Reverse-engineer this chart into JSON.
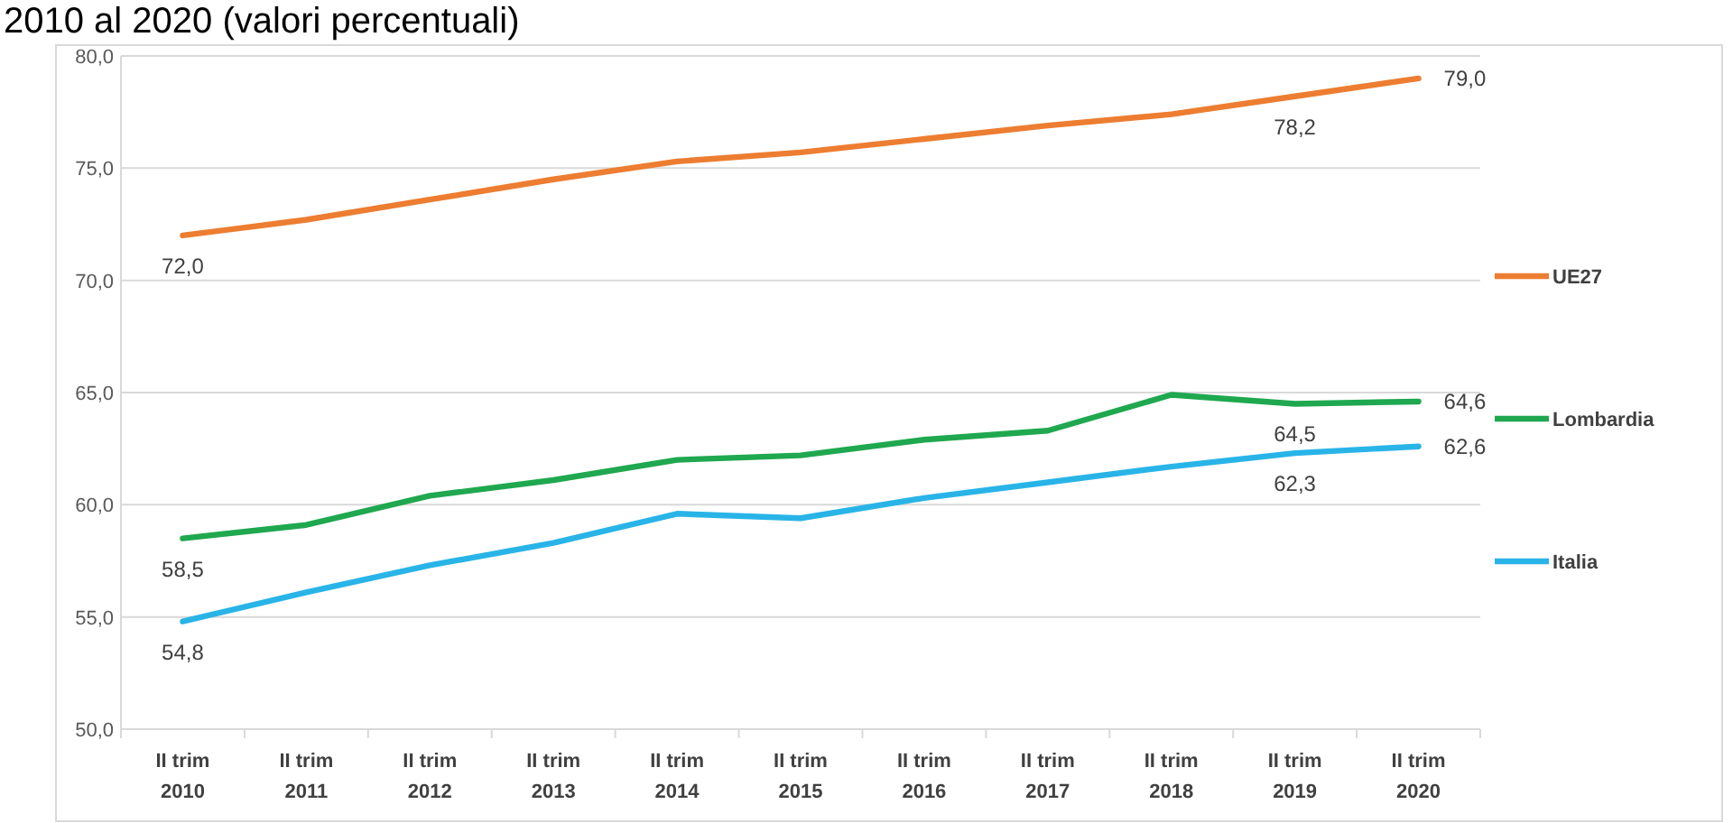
{
  "chart_data": {
    "type": "line",
    "title": "2010 al 2020 (valori percentuali)",
    "categories": [
      "II trim 2010",
      "II trim 2011",
      "II trim 2012",
      "II trim 2013",
      "II trim 2014",
      "II trim 2015",
      "II trim 2016",
      "II trim 2017",
      "II trim 2018",
      "II trim 2019",
      "II trim 2020"
    ],
    "series": [
      {
        "name": "UE27",
        "color": "#ed7d31",
        "values": [
          72.0,
          72.7,
          73.6,
          74.5,
          75.3,
          75.7,
          76.3,
          76.9,
          77.4,
          78.2,
          79.0
        ],
        "value_labels": [
          "72,0",
          null,
          null,
          null,
          null,
          null,
          null,
          null,
          null,
          "78,2",
          "79,0"
        ]
      },
      {
        "name": "Lombardia",
        "color": "#1fa84f",
        "values": [
          58.5,
          59.1,
          60.4,
          61.1,
          62.0,
          62.2,
          62.9,
          63.3,
          64.9,
          64.5,
          64.6
        ],
        "value_labels": [
          "58,5",
          null,
          null,
          null,
          null,
          null,
          null,
          null,
          null,
          "64,5",
          "64,6"
        ]
      },
      {
        "name": "Italia",
        "color": "#29b4e8",
        "values": [
          54.8,
          56.1,
          57.3,
          58.3,
          59.6,
          59.4,
          60.3,
          61.0,
          61.7,
          62.3,
          62.6
        ],
        "value_labels": [
          "54,8",
          null,
          null,
          null,
          null,
          null,
          null,
          null,
          null,
          "62,3",
          "62,6"
        ]
      }
    ],
    "ylim": [
      50,
      80
    ],
    "yticks": [
      {
        "value": 50,
        "label": "50,0"
      },
      {
        "value": 55,
        "label": "55,0"
      },
      {
        "value": 60,
        "label": "60,0"
      },
      {
        "value": 65,
        "label": "65,0"
      },
      {
        "value": 70,
        "label": "70,0"
      },
      {
        "value": 75,
        "label": "75,0"
      },
      {
        "value": 80,
        "label": "80,0"
      }
    ],
    "grid": "y",
    "legend": "right"
  }
}
